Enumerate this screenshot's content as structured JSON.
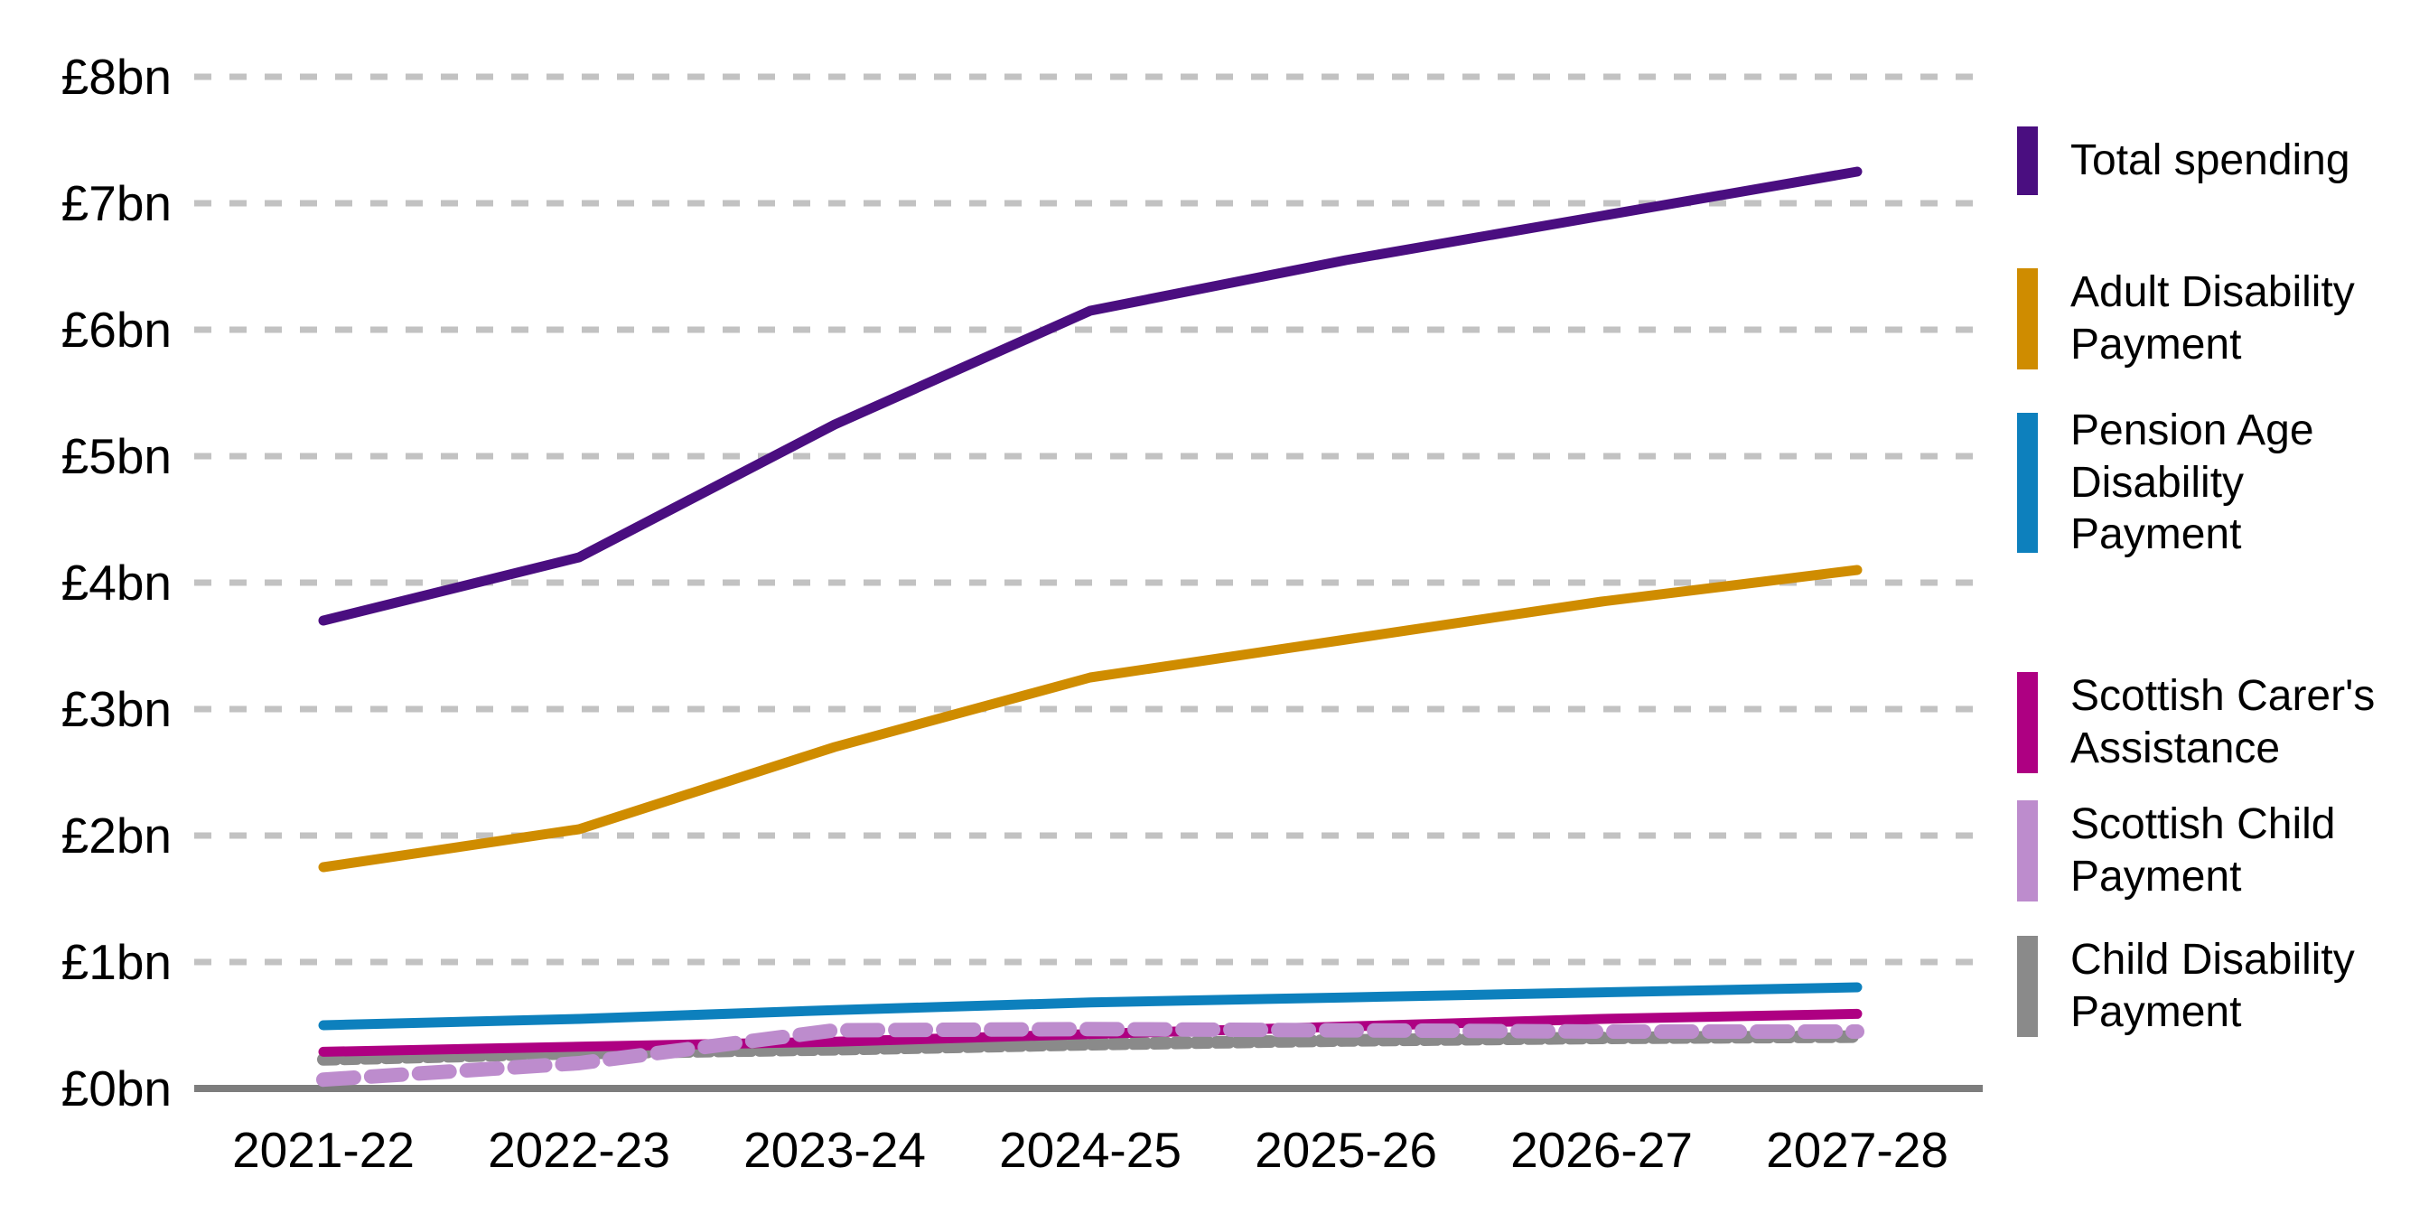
{
  "chart_data": {
    "type": "line",
    "title": "",
    "x": [
      "2021-22",
      "2022-23",
      "2023-24",
      "2024-25",
      "2025-26",
      "2026-27",
      "2027-28"
    ],
    "y_tick_labels": [
      "£0bn",
      "£1bn",
      "£2bn",
      "£3bn",
      "£4bn",
      "£5bn",
      "£6bn",
      "£7bn",
      "£8bn"
    ],
    "ylim": [
      0,
      8
    ],
    "y_unit": "£bn",
    "grid": "horizontal-dashed",
    "legend_position": "right",
    "series": [
      {
        "name": "Total spending",
        "color": "#4a0e80",
        "style": "solid",
        "values": [
          3.7,
          4.2,
          5.25,
          6.15,
          6.55,
          6.9,
          7.25
        ]
      },
      {
        "name": "Adult Disability Payment",
        "color": "#cf8c00",
        "style": "solid",
        "values": [
          1.75,
          2.05,
          2.7,
          3.25,
          3.55,
          3.85,
          4.1
        ]
      },
      {
        "name": "Pension Age Disability Payment",
        "color": "#0d80bd",
        "style": "solid",
        "values": [
          0.5,
          0.55,
          0.62,
          0.68,
          0.72,
          0.76,
          0.8
        ]
      },
      {
        "name": "Scottish Carer's Assistance",
        "color": "#ae0082",
        "style": "solid",
        "values": [
          0.29,
          0.33,
          0.37,
          0.43,
          0.49,
          0.55,
          0.59
        ]
      },
      {
        "name": "Scottish Child Payment",
        "color": "#bd8ccd",
        "style": "dashed",
        "values": [
          0.07,
          0.2,
          0.46,
          0.47,
          0.46,
          0.45,
          0.45
        ]
      },
      {
        "name": "Child Disability Payment",
        "color": "#8a8a8a",
        "style": "dotted",
        "values": [
          0.23,
          0.28,
          0.31,
          0.35,
          0.38,
          0.4,
          0.41
        ]
      }
    ]
  }
}
